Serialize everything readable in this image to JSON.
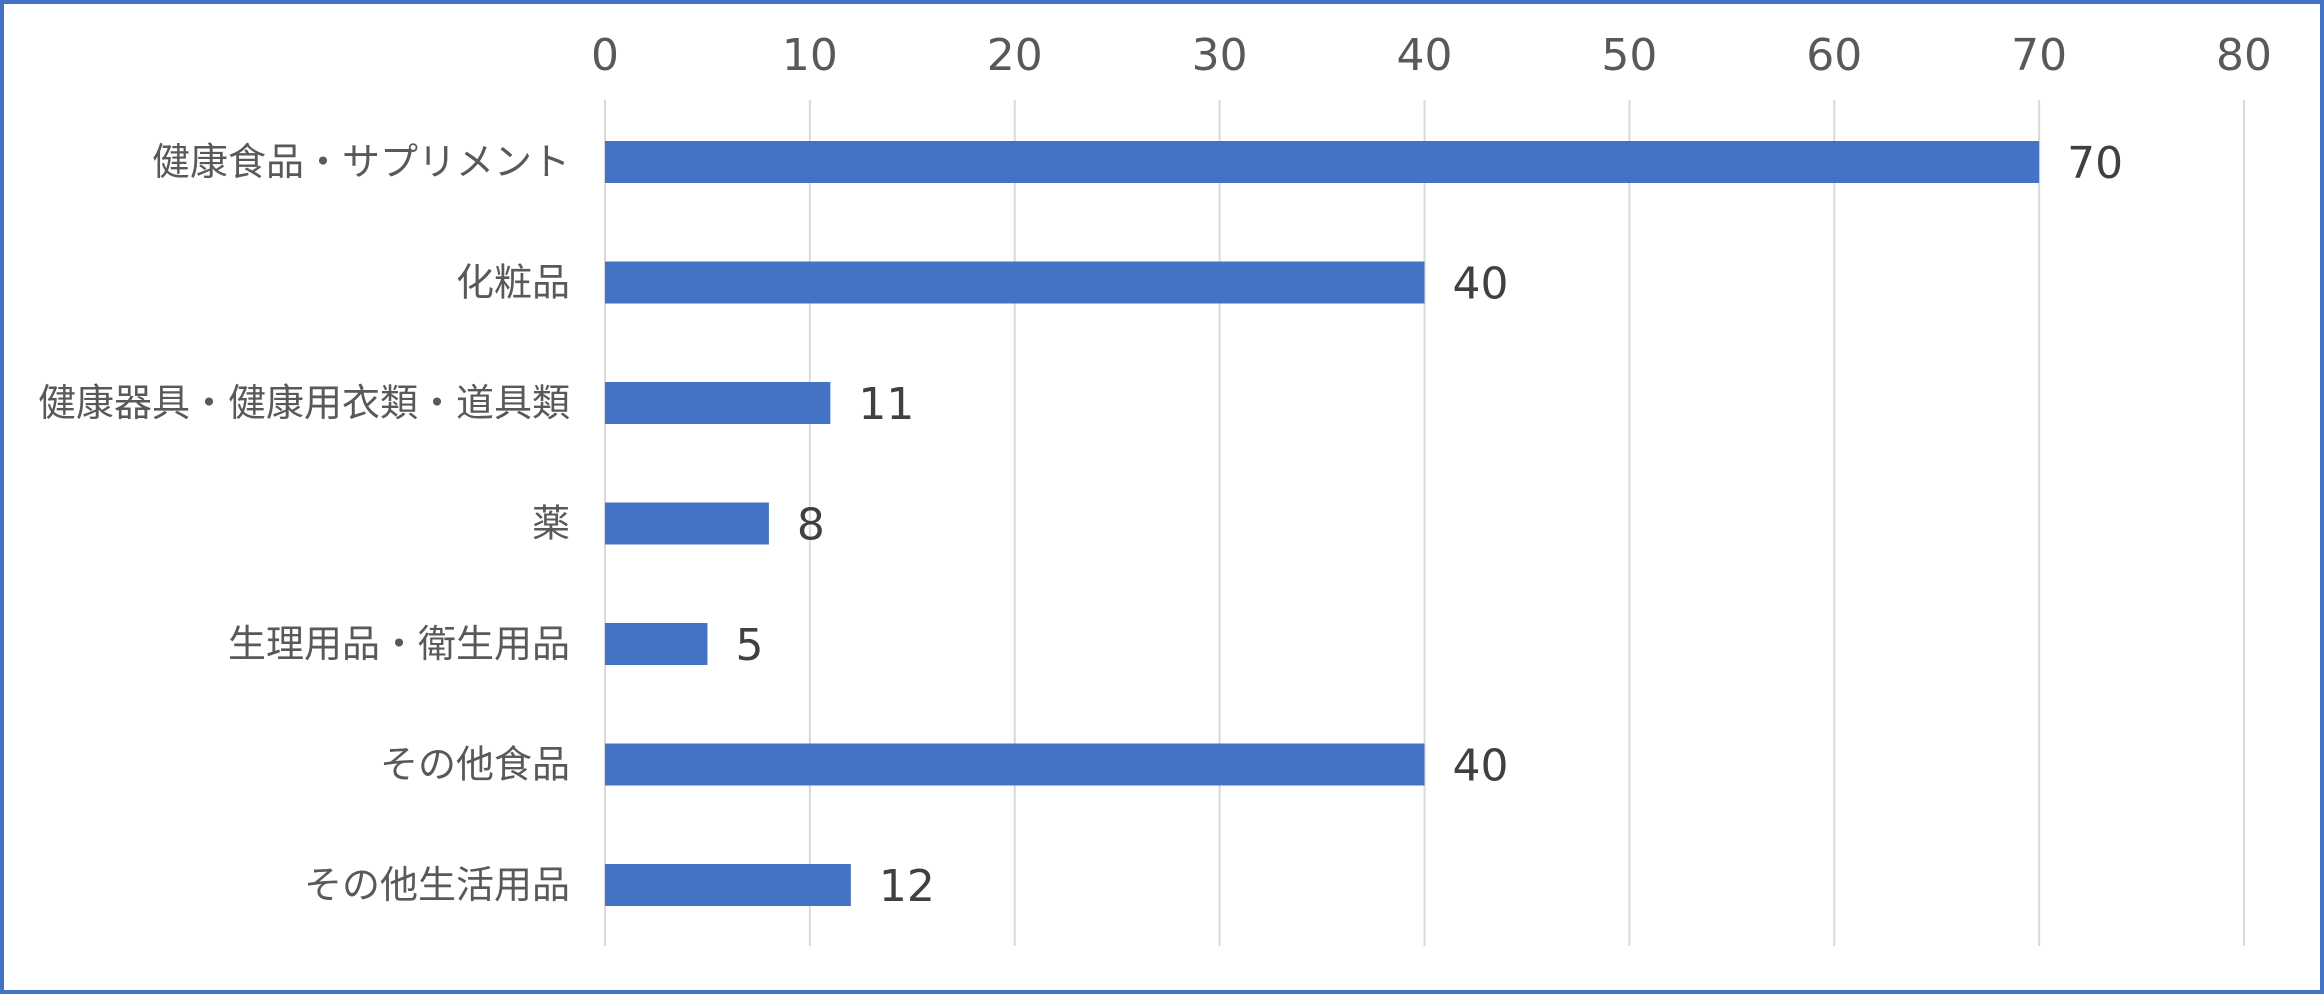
{
  "chart_data": {
    "type": "bar",
    "orientation": "horizontal",
    "categories": [
      "健康食品・サプリメント",
      "化粧品",
      "健康器具・健康用衣類・道具類",
      "薬",
      "生理用品・衛生用品",
      "その他食品",
      "その他生活用品"
    ],
    "values": [
      70,
      40,
      11,
      8,
      5,
      40,
      12
    ],
    "xlim": [
      0,
      80
    ],
    "xticks": [
      0,
      10,
      20,
      30,
      40,
      50,
      60,
      70,
      80
    ],
    "x_axis_position": "top",
    "grid": true,
    "data_labels": true,
    "bar_color": "#4472C4",
    "grid_color": "#D9D9D9",
    "border_color": "#4472C4"
  }
}
